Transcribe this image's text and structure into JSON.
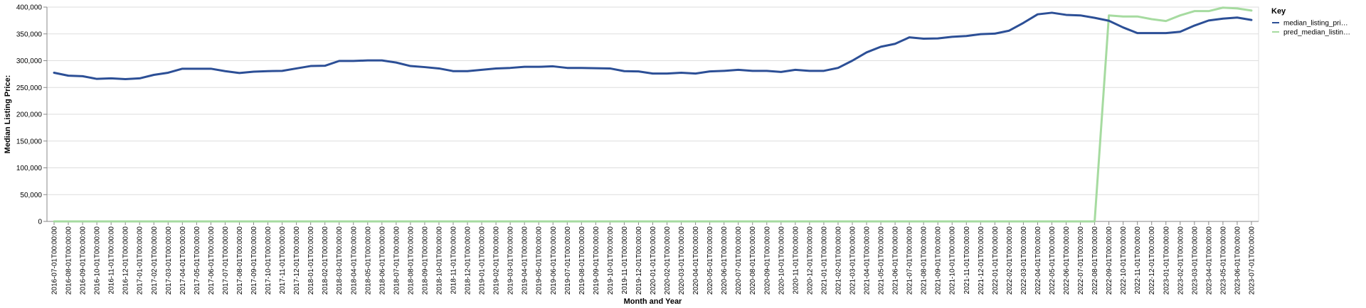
{
  "chart_data": {
    "type": "line",
    "xlabel": "Month and Year",
    "ylabel": "Median Listing Price:",
    "ylim": [
      0,
      400000
    ],
    "yticks": [
      "0",
      "50,000",
      "100,000",
      "150,000",
      "200,000",
      "250,000",
      "300,000",
      "350,000",
      "400,000"
    ],
    "grid": true,
    "legend": {
      "title": "Key",
      "placement": "top-right"
    },
    "x": [
      "2016-07-01T00:00:00",
      "2016-08-01T00:00:00",
      "2016-09-01T00:00:00",
      "2016-10-01T00:00:00",
      "2016-11-01T00:00:00",
      "2016-12-01T00:00:00",
      "2017-01-01T00:00:00",
      "2017-02-01T00:00:00",
      "2017-03-01T00:00:00",
      "2017-04-01T00:00:00",
      "2017-05-01T00:00:00",
      "2017-06-01T00:00:00",
      "2017-07-01T00:00:00",
      "2017-08-01T00:00:00",
      "2017-09-01T00:00:00",
      "2017-10-01T00:00:00",
      "2017-11-01T00:00:00",
      "2017-12-01T00:00:00",
      "2018-01-01T00:00:00",
      "2018-02-01T00:00:00",
      "2018-03-01T00:00:00",
      "2018-04-01T00:00:00",
      "2018-05-01T00:00:00",
      "2018-06-01T00:00:00",
      "2018-07-01T00:00:00",
      "2018-08-01T00:00:00",
      "2018-09-01T00:00:00",
      "2018-10-01T00:00:00",
      "2018-11-01T00:00:00",
      "2018-12-01T00:00:00",
      "2019-01-01T00:00:00",
      "2019-02-01T00:00:00",
      "2019-03-01T00:00:00",
      "2019-04-01T00:00:00",
      "2019-05-01T00:00:00",
      "2019-06-01T00:00:00",
      "2019-07-01T00:00:00",
      "2019-08-01T00:00:00",
      "2019-09-01T00:00:00",
      "2019-10-01T00:00:00",
      "2019-11-01T00:00:00",
      "2019-12-01T00:00:00",
      "2020-01-01T00:00:00",
      "2020-02-01T00:00:00",
      "2020-03-01T00:00:00",
      "2020-04-01T00:00:00",
      "2020-05-01T00:00:00",
      "2020-06-01T00:00:00",
      "2020-07-01T00:00:00",
      "2020-08-01T00:00:00",
      "2020-09-01T00:00:00",
      "2020-10-01T00:00:00",
      "2020-11-01T00:00:00",
      "2020-12-01T00:00:00",
      "2021-01-01T00:00:00",
      "2021-02-01T00:00:00",
      "2021-03-01T00:00:00",
      "2021-04-01T00:00:00",
      "2021-05-01T00:00:00",
      "2021-06-01T00:00:00",
      "2021-07-01T00:00:00",
      "2021-08-01T00:00:00",
      "2021-09-01T00:00:00",
      "2021-10-01T00:00:00",
      "2021-11-01T00:00:00",
      "2021-12-01T00:00:00",
      "2022-01-01T00:00:00",
      "2022-02-01T00:00:00",
      "2022-03-01T00:00:00",
      "2022-04-01T00:00:00",
      "2022-05-01T00:00:00",
      "2022-06-01T00:00:00",
      "2022-07-01T00:00:00",
      "2022-08-01T00:00:00",
      "2022-09-01T00:00:00",
      "2022-10-01T00:00:00",
      "2022-11-01T00:00:00",
      "2022-12-01T00:00:00",
      "2023-01-01T00:00:00",
      "2023-02-01T00:00:00",
      "2023-03-01T00:00:00",
      "2023-04-01T00:00:00",
      "2023-05-01T00:00:00",
      "2023-06-01T00:00:00",
      "2023-07-01T00:00:00"
    ],
    "series": [
      {
        "name": "median_listing_pri…",
        "color": "#2c4f96",
        "values": [
          277500,
          272000,
          271000,
          266000,
          267000,
          265500,
          267000,
          273500,
          277500,
          285000,
          285000,
          285000,
          280500,
          277000,
          279500,
          280500,
          281000,
          285500,
          290000,
          290500,
          299500,
          299500,
          300500,
          300500,
          296500,
          290000,
          288000,
          285500,
          280500,
          280500,
          283000,
          285500,
          286500,
          288500,
          288500,
          289500,
          286500,
          286500,
          286000,
          285500,
          280500,
          280000,
          276000,
          276000,
          277500,
          276000,
          280000,
          281000,
          283000,
          281000,
          281000,
          279000,
          283000,
          281000,
          281000,
          286500,
          300000,
          315500,
          326000,
          331500,
          343500,
          341000,
          341500,
          344500,
          346000,
          349500,
          350500,
          356000,
          370500,
          386500,
          389500,
          385500,
          384500,
          380000,
          374500,
          362000,
          351500,
          351500,
          351500,
          354000,
          365500,
          375000,
          378500,
          380500,
          376000
        ]
      },
      {
        "name": "pred_median_listin…",
        "color": "#a6dba0",
        "values": [
          0,
          0,
          0,
          0,
          0,
          0,
          0,
          0,
          0,
          0,
          0,
          0,
          0,
          0,
          0,
          0,
          0,
          0,
          0,
          0,
          0,
          0,
          0,
          0,
          0,
          0,
          0,
          0,
          0,
          0,
          0,
          0,
          0,
          0,
          0,
          0,
          0,
          0,
          0,
          0,
          0,
          0,
          0,
          0,
          0,
          0,
          0,
          0,
          0,
          0,
          0,
          0,
          0,
          0,
          0,
          0,
          0,
          0,
          0,
          0,
          0,
          0,
          0,
          0,
          0,
          0,
          0,
          0,
          0,
          0,
          0,
          0,
          0,
          0,
          384500,
          382500,
          382500,
          377500,
          374000,
          384500,
          392500,
          392500,
          399000,
          397500,
          393500
        ]
      }
    ]
  }
}
